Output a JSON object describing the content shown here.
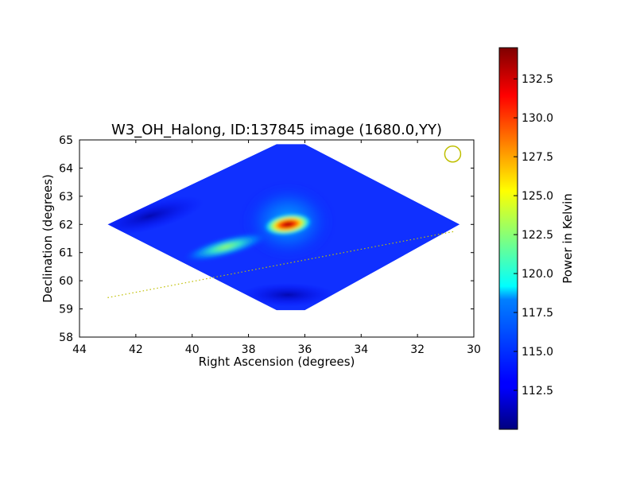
{
  "chart_data": {
    "type": "heatmap",
    "title": "W3_OH_Halong, ID:137845 image (1680.0,YY)",
    "xlabel": "Right Ascension (degrees)",
    "ylabel": "Declination (degrees)",
    "xlim": [
      44,
      30
    ],
    "ylim": [
      58,
      65
    ],
    "xticks": [
      "44",
      "42",
      "40",
      "38",
      "36",
      "34",
      "32",
      "30"
    ],
    "yticks": [
      "58",
      "59",
      "60",
      "61",
      "62",
      "63",
      "64",
      "65"
    ],
    "colorbar": {
      "label": "Power in Kelvin",
      "range": [
        110.0,
        134.5
      ],
      "ticks": [
        "112.5",
        "115.0",
        "117.5",
        "120.0",
        "122.5",
        "125.0",
        "127.5",
        "130.0",
        "132.5"
      ],
      "colormap": "jet"
    },
    "map_footprint": {
      "description": "diamond-shaped observed region",
      "vertices_ra_dec": [
        [
          43,
          62.0
        ],
        [
          37,
          64.85
        ],
        [
          36,
          64.85
        ],
        [
          30.5,
          62.0
        ],
        [
          36,
          58.95
        ],
        [
          37,
          58.95
        ]
      ]
    },
    "features": [
      {
        "ra": 36.6,
        "dec": 62.0,
        "peak_kelvin": 134
      },
      {
        "ra": 38.8,
        "dec": 61.2,
        "peak_kelvin": 120
      }
    ],
    "background_kelvin": 113,
    "beam_marker": {
      "ra": 30.75,
      "dec": 64.5,
      "color": "#bfbf00"
    },
    "track_line": {
      "from": [
        43,
        59.4
      ],
      "to": [
        30.7,
        61.75
      ],
      "color": "#bfbf00",
      "style": "dotted"
    }
  }
}
